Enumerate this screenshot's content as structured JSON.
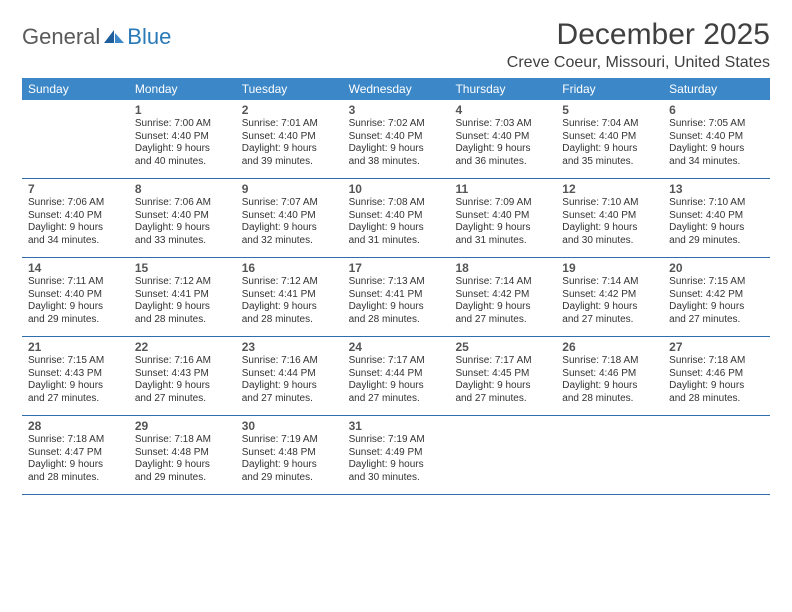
{
  "brand": {
    "general": "General",
    "blue": "Blue"
  },
  "title": "December 2025",
  "location": "Creve Coeur, Missouri, United States",
  "colors": {
    "header_bg": "#3b87c8",
    "header_text": "#ffffff",
    "week_border": "#2f6ea8",
    "daynum": "#555555",
    "body_text": "#333333",
    "logo_gray": "#5a5a5a",
    "logo_blue": "#2a7ab8",
    "page_bg": "#ffffff"
  },
  "typography": {
    "title_fontsize": 30,
    "location_fontsize": 16,
    "dayheader_fontsize": 12,
    "daynum_fontsize": 12,
    "body_fontsize": 10
  },
  "day_headers": [
    "Sunday",
    "Monday",
    "Tuesday",
    "Wednesday",
    "Thursday",
    "Friday",
    "Saturday"
  ],
  "weeks": [
    [
      {
        "blank": true
      },
      {
        "n": "1",
        "sunrise": "Sunrise: 7:00 AM",
        "sunset": "Sunset: 4:40 PM",
        "d1": "Daylight: 9 hours",
        "d2": "and 40 minutes."
      },
      {
        "n": "2",
        "sunrise": "Sunrise: 7:01 AM",
        "sunset": "Sunset: 4:40 PM",
        "d1": "Daylight: 9 hours",
        "d2": "and 39 minutes."
      },
      {
        "n": "3",
        "sunrise": "Sunrise: 7:02 AM",
        "sunset": "Sunset: 4:40 PM",
        "d1": "Daylight: 9 hours",
        "d2": "and 38 minutes."
      },
      {
        "n": "4",
        "sunrise": "Sunrise: 7:03 AM",
        "sunset": "Sunset: 4:40 PM",
        "d1": "Daylight: 9 hours",
        "d2": "and 36 minutes."
      },
      {
        "n": "5",
        "sunrise": "Sunrise: 7:04 AM",
        "sunset": "Sunset: 4:40 PM",
        "d1": "Daylight: 9 hours",
        "d2": "and 35 minutes."
      },
      {
        "n": "6",
        "sunrise": "Sunrise: 7:05 AM",
        "sunset": "Sunset: 4:40 PM",
        "d1": "Daylight: 9 hours",
        "d2": "and 34 minutes."
      }
    ],
    [
      {
        "n": "7",
        "sunrise": "Sunrise: 7:06 AM",
        "sunset": "Sunset: 4:40 PM",
        "d1": "Daylight: 9 hours",
        "d2": "and 34 minutes."
      },
      {
        "n": "8",
        "sunrise": "Sunrise: 7:06 AM",
        "sunset": "Sunset: 4:40 PM",
        "d1": "Daylight: 9 hours",
        "d2": "and 33 minutes."
      },
      {
        "n": "9",
        "sunrise": "Sunrise: 7:07 AM",
        "sunset": "Sunset: 4:40 PM",
        "d1": "Daylight: 9 hours",
        "d2": "and 32 minutes."
      },
      {
        "n": "10",
        "sunrise": "Sunrise: 7:08 AM",
        "sunset": "Sunset: 4:40 PM",
        "d1": "Daylight: 9 hours",
        "d2": "and 31 minutes."
      },
      {
        "n": "11",
        "sunrise": "Sunrise: 7:09 AM",
        "sunset": "Sunset: 4:40 PM",
        "d1": "Daylight: 9 hours",
        "d2": "and 31 minutes."
      },
      {
        "n": "12",
        "sunrise": "Sunrise: 7:10 AM",
        "sunset": "Sunset: 4:40 PM",
        "d1": "Daylight: 9 hours",
        "d2": "and 30 minutes."
      },
      {
        "n": "13",
        "sunrise": "Sunrise: 7:10 AM",
        "sunset": "Sunset: 4:40 PM",
        "d1": "Daylight: 9 hours",
        "d2": "and 29 minutes."
      }
    ],
    [
      {
        "n": "14",
        "sunrise": "Sunrise: 7:11 AM",
        "sunset": "Sunset: 4:40 PM",
        "d1": "Daylight: 9 hours",
        "d2": "and 29 minutes."
      },
      {
        "n": "15",
        "sunrise": "Sunrise: 7:12 AM",
        "sunset": "Sunset: 4:41 PM",
        "d1": "Daylight: 9 hours",
        "d2": "and 28 minutes."
      },
      {
        "n": "16",
        "sunrise": "Sunrise: 7:12 AM",
        "sunset": "Sunset: 4:41 PM",
        "d1": "Daylight: 9 hours",
        "d2": "and 28 minutes."
      },
      {
        "n": "17",
        "sunrise": "Sunrise: 7:13 AM",
        "sunset": "Sunset: 4:41 PM",
        "d1": "Daylight: 9 hours",
        "d2": "and 28 minutes."
      },
      {
        "n": "18",
        "sunrise": "Sunrise: 7:14 AM",
        "sunset": "Sunset: 4:42 PM",
        "d1": "Daylight: 9 hours",
        "d2": "and 27 minutes."
      },
      {
        "n": "19",
        "sunrise": "Sunrise: 7:14 AM",
        "sunset": "Sunset: 4:42 PM",
        "d1": "Daylight: 9 hours",
        "d2": "and 27 minutes."
      },
      {
        "n": "20",
        "sunrise": "Sunrise: 7:15 AM",
        "sunset": "Sunset: 4:42 PM",
        "d1": "Daylight: 9 hours",
        "d2": "and 27 minutes."
      }
    ],
    [
      {
        "n": "21",
        "sunrise": "Sunrise: 7:15 AM",
        "sunset": "Sunset: 4:43 PM",
        "d1": "Daylight: 9 hours",
        "d2": "and 27 minutes."
      },
      {
        "n": "22",
        "sunrise": "Sunrise: 7:16 AM",
        "sunset": "Sunset: 4:43 PM",
        "d1": "Daylight: 9 hours",
        "d2": "and 27 minutes."
      },
      {
        "n": "23",
        "sunrise": "Sunrise: 7:16 AM",
        "sunset": "Sunset: 4:44 PM",
        "d1": "Daylight: 9 hours",
        "d2": "and 27 minutes."
      },
      {
        "n": "24",
        "sunrise": "Sunrise: 7:17 AM",
        "sunset": "Sunset: 4:44 PM",
        "d1": "Daylight: 9 hours",
        "d2": "and 27 minutes."
      },
      {
        "n": "25",
        "sunrise": "Sunrise: 7:17 AM",
        "sunset": "Sunset: 4:45 PM",
        "d1": "Daylight: 9 hours",
        "d2": "and 27 minutes."
      },
      {
        "n": "26",
        "sunrise": "Sunrise: 7:18 AM",
        "sunset": "Sunset: 4:46 PM",
        "d1": "Daylight: 9 hours",
        "d2": "and 28 minutes."
      },
      {
        "n": "27",
        "sunrise": "Sunrise: 7:18 AM",
        "sunset": "Sunset: 4:46 PM",
        "d1": "Daylight: 9 hours",
        "d2": "and 28 minutes."
      }
    ],
    [
      {
        "n": "28",
        "sunrise": "Sunrise: 7:18 AM",
        "sunset": "Sunset: 4:47 PM",
        "d1": "Daylight: 9 hours",
        "d2": "and 28 minutes."
      },
      {
        "n": "29",
        "sunrise": "Sunrise: 7:18 AM",
        "sunset": "Sunset: 4:48 PM",
        "d1": "Daylight: 9 hours",
        "d2": "and 29 minutes."
      },
      {
        "n": "30",
        "sunrise": "Sunrise: 7:19 AM",
        "sunset": "Sunset: 4:48 PM",
        "d1": "Daylight: 9 hours",
        "d2": "and 29 minutes."
      },
      {
        "n": "31",
        "sunrise": "Sunrise: 7:19 AM",
        "sunset": "Sunset: 4:49 PM",
        "d1": "Daylight: 9 hours",
        "d2": "and 30 minutes."
      },
      {
        "blank": true
      },
      {
        "blank": true
      },
      {
        "blank": true
      }
    ]
  ]
}
